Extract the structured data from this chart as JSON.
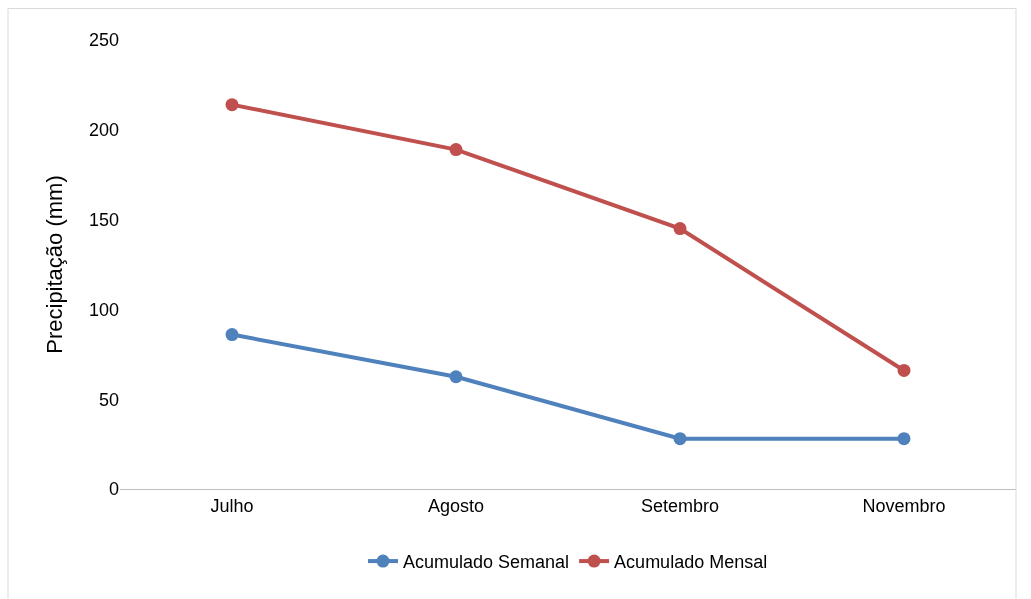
{
  "chart_data": {
    "type": "line",
    "ylabel": "Precipitação (mm)",
    "categories": [
      "Julho",
      "Agosto",
      "Setembro",
      "Novembro"
    ],
    "series": [
      {
        "name": "Acumulado Semanal",
        "color": "#4f81bd",
        "values": [
          86,
          62.5,
          28,
          28
        ]
      },
      {
        "name": "Acumulado Mensal",
        "color": "#c0504d",
        "values": [
          214,
          189,
          145,
          66
        ]
      }
    ],
    "ylim": [
      0,
      250
    ],
    "yticks": [
      0,
      50,
      100,
      150,
      200,
      250
    ],
    "legend": "bottom",
    "marker": "circle",
    "line_style": "solid"
  }
}
